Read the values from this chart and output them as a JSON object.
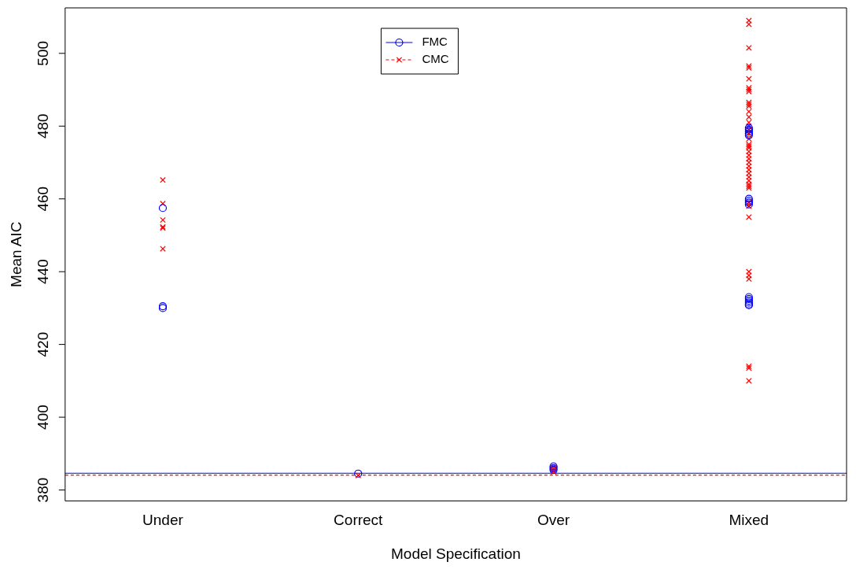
{
  "chart_data": {
    "type": "scatter",
    "xlabel": "Model Specification",
    "ylabel": "Mean AIC",
    "categories": [
      "Under",
      "Correct",
      "Over",
      "Mixed"
    ],
    "ylim": [
      377,
      512.5
    ],
    "yticks": [
      380,
      400,
      420,
      440,
      460,
      480,
      500
    ],
    "grid": false,
    "legend": "top",
    "series": [
      {
        "name": "FMC",
        "color": "#0000ff",
        "marker": "circle",
        "line_style": "solid",
        "x": [
          "Under",
          "Under",
          "Under",
          "Correct",
          "Over",
          "Over",
          "Over",
          "Mixed",
          "Mixed",
          "Mixed",
          "Mixed",
          "Mixed",
          "Mixed",
          "Mixed",
          "Mixed",
          "Mixed",
          "Mixed",
          "Mixed",
          "Mixed",
          "Mixed",
          "Mixed",
          "Mixed"
        ],
        "values": [
          457.5,
          430.5,
          430,
          384.5,
          386.5,
          386,
          385.5,
          479.5,
          479,
          478.5,
          478,
          477.5,
          460,
          459.5,
          459,
          458.5,
          433,
          432.5,
          432,
          431.5,
          431,
          430.8
        ]
      },
      {
        "name": "CMC",
        "color": "#ff0000",
        "marker": "cross",
        "line_style": "dashed",
        "x": [
          "Under",
          "Under",
          "Under",
          "Under",
          "Under",
          "Under",
          "Correct",
          "Over",
          "Over",
          "Over",
          "Over",
          "Mixed",
          "Mixed",
          "Mixed",
          "Mixed",
          "Mixed",
          "Mixed",
          "Mixed",
          "Mixed",
          "Mixed",
          "Mixed",
          "Mixed",
          "Mixed",
          "Mixed",
          "Mixed",
          "Mixed",
          "Mixed",
          "Mixed",
          "Mixed",
          "Mixed",
          "Mixed",
          "Mixed",
          "Mixed",
          "Mixed",
          "Mixed",
          "Mixed",
          "Mixed",
          "Mixed",
          "Mixed",
          "Mixed",
          "Mixed",
          "Mixed",
          "Mixed",
          "Mixed",
          "Mixed",
          "Mixed",
          "Mixed",
          "Mixed",
          "Mixed",
          "Mixed",
          "Mixed",
          "Mixed",
          "Mixed",
          "Mixed",
          "Mixed",
          "Mixed"
        ],
        "values": [
          465.2,
          458.7,
          454.2,
          452.3,
          452,
          446.3,
          384,
          386.5,
          386,
          385.5,
          385,
          509,
          508,
          501.5,
          496.5,
          496,
          493,
          490.5,
          490,
          489.5,
          486.5,
          486,
          485.5,
          484,
          482.5,
          481,
          480,
          479,
          478,
          null,
          null,
          476.5,
          475,
          474.5,
          474,
          473,
          472,
          471,
          470,
          469,
          468,
          467,
          466,
          465,
          464,
          463.5,
          463,
          459,
          458,
          455,
          440,
          439,
          438,
          414,
          413.5,
          410
        ]
      }
    ],
    "ref_lines": [
      {
        "axis": "y",
        "value": 384.6,
        "color": "#0000ff",
        "line_style": "solid"
      },
      {
        "axis": "y",
        "value": 384.1,
        "color": "#ff0000",
        "line_style": "dashed"
      }
    ]
  }
}
